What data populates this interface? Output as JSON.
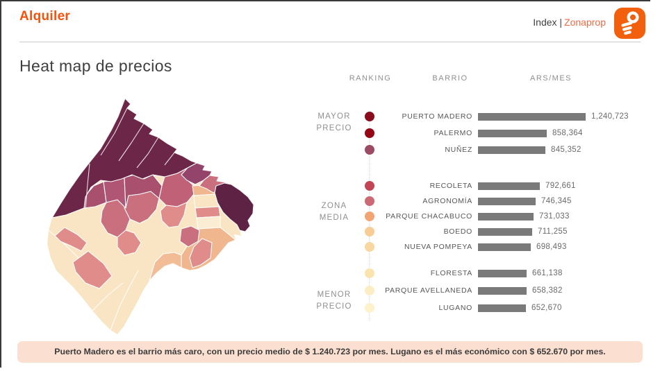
{
  "window": {
    "frame_color": "#3a3a3a",
    "divider_color": "#cacaca"
  },
  "header": {
    "brand": "Alquiler",
    "brand_color": "#F4530D",
    "index_label": "Index |",
    "index_brand": "Zonaprop",
    "index_brand_color": "#EF6B45",
    "logo": {
      "icon": "key-icon",
      "bg_color": "#F2600D"
    }
  },
  "page_title": "Heat map de precios",
  "ranking_panel": {
    "columns": [
      "RANKING",
      "BARRIO",
      "ARS/MES"
    ],
    "sections": [
      {
        "label": "MAYOR\nPRECIO"
      },
      {
        "label": "ZONA\nMEDIA"
      },
      {
        "label": "MENOR\nPRECIO"
      }
    ]
  },
  "chart_data": {
    "type": "bar",
    "orientation": "horizontal",
    "title": "Heat map de precios",
    "value_unit": "ARS/MES",
    "bar_color": "#7a7a7a",
    "legend_position": "left",
    "groups": [
      {
        "section": "MAYOR PRECIO",
        "rows": [
          {
            "barrio": "PUERTO MADERO",
            "value": 1240723,
            "display": "1,240,723",
            "dot_color": "#8A0D1D"
          },
          {
            "barrio": "PALERMO",
            "value": 858364,
            "display": "858,364",
            "dot_color": "#950512"
          },
          {
            "barrio": "NUÑEZ",
            "value": 845352,
            "display": "845,352",
            "dot_color": "#9D4A63"
          }
        ]
      },
      {
        "section": "ZONA MEDIA",
        "rows": [
          {
            "barrio": "RECOLETA",
            "value": 792661,
            "display": "792,661",
            "dot_color": "#C34553"
          },
          {
            "barrio": "AGRONOMÍA",
            "value": 746345,
            "display": "746,345",
            "dot_color": "#CB6974"
          },
          {
            "barrio": "PARQUE CHACABUCO",
            "value": 731033,
            "display": "731,033",
            "dot_color": "#F3A475"
          },
          {
            "barrio": "BOEDO",
            "value": 711255,
            "display": "711,255",
            "dot_color": "#F7CD95"
          },
          {
            "barrio": "NUEVA POMPEYA",
            "value": 698493,
            "display": "698,493",
            "dot_color": "#F8D7A1"
          }
        ]
      },
      {
        "section": "MENOR PRECIO",
        "rows": [
          {
            "barrio": "FLORESTA",
            "value": 661138,
            "display": "661,138",
            "dot_color": "#FBE3AE"
          },
          {
            "barrio": "PARQUE AVELLANEDA",
            "value": 658382,
            "display": "658,382",
            "dot_color": "#FCEDC4"
          },
          {
            "barrio": "LUGANO",
            "value": 652670,
            "display": "652,670",
            "dot_color": "#FDF2CC"
          }
        ]
      }
    ]
  },
  "map": {
    "palette": {
      "dark": "#6C2748",
      "pm_dark": "#5E2245",
      "plum": "#94436A",
      "mauve": "#A9506E",
      "mauve2": "#B05574",
      "rose": "#C96F7E",
      "rose_deep": "#C06178",
      "salmon": "#DF8C8A",
      "peach": "#F0B68E",
      "peach_light": "#F2BD96",
      "cream": "#F9E5C4",
      "pale_cream": "#FBEDD3"
    },
    "legend": {
      "high": "MAYOR PRECIO",
      "mid": "ZONA MEDIA",
      "low": "MENOR PRECIO"
    }
  },
  "footer_note": "Puerto Madero es el barrio más caro, con un precio medio de $ 1.240.723 por mes. Lugano es el más económico con $ 652.670 por mes."
}
